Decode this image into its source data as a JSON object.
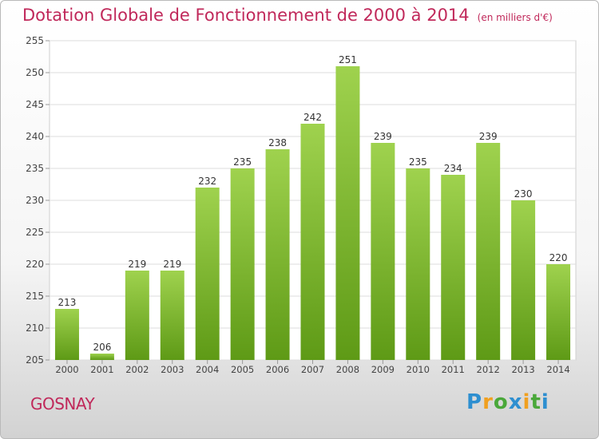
{
  "header": {
    "title": "Dotation Globale de Fonctionnement de 2000 à 2014",
    "subtitle": "(en milliers d'€)"
  },
  "footer": {
    "city": "GOSNAY",
    "brand": "Proxiti"
  },
  "colors": {
    "title": "#c0285a",
    "bar_light": "#9fd24e",
    "bar_dark": "#5e9a16",
    "grid": "#dddddd"
  },
  "chart_data": {
    "type": "bar",
    "categories": [
      "2000",
      "2001",
      "2002",
      "2003",
      "2004",
      "2005",
      "2006",
      "2007",
      "2008",
      "2009",
      "2010",
      "2011",
      "2012",
      "2013",
      "2014"
    ],
    "values": [
      213,
      206,
      219,
      219,
      232,
      235,
      238,
      242,
      251,
      239,
      235,
      234,
      239,
      230,
      220
    ],
    "ylim": [
      205,
      255
    ],
    "yticks": [
      205,
      210,
      215,
      220,
      225,
      230,
      235,
      240,
      245,
      250,
      255
    ],
    "grid": true,
    "legend": "none"
  }
}
